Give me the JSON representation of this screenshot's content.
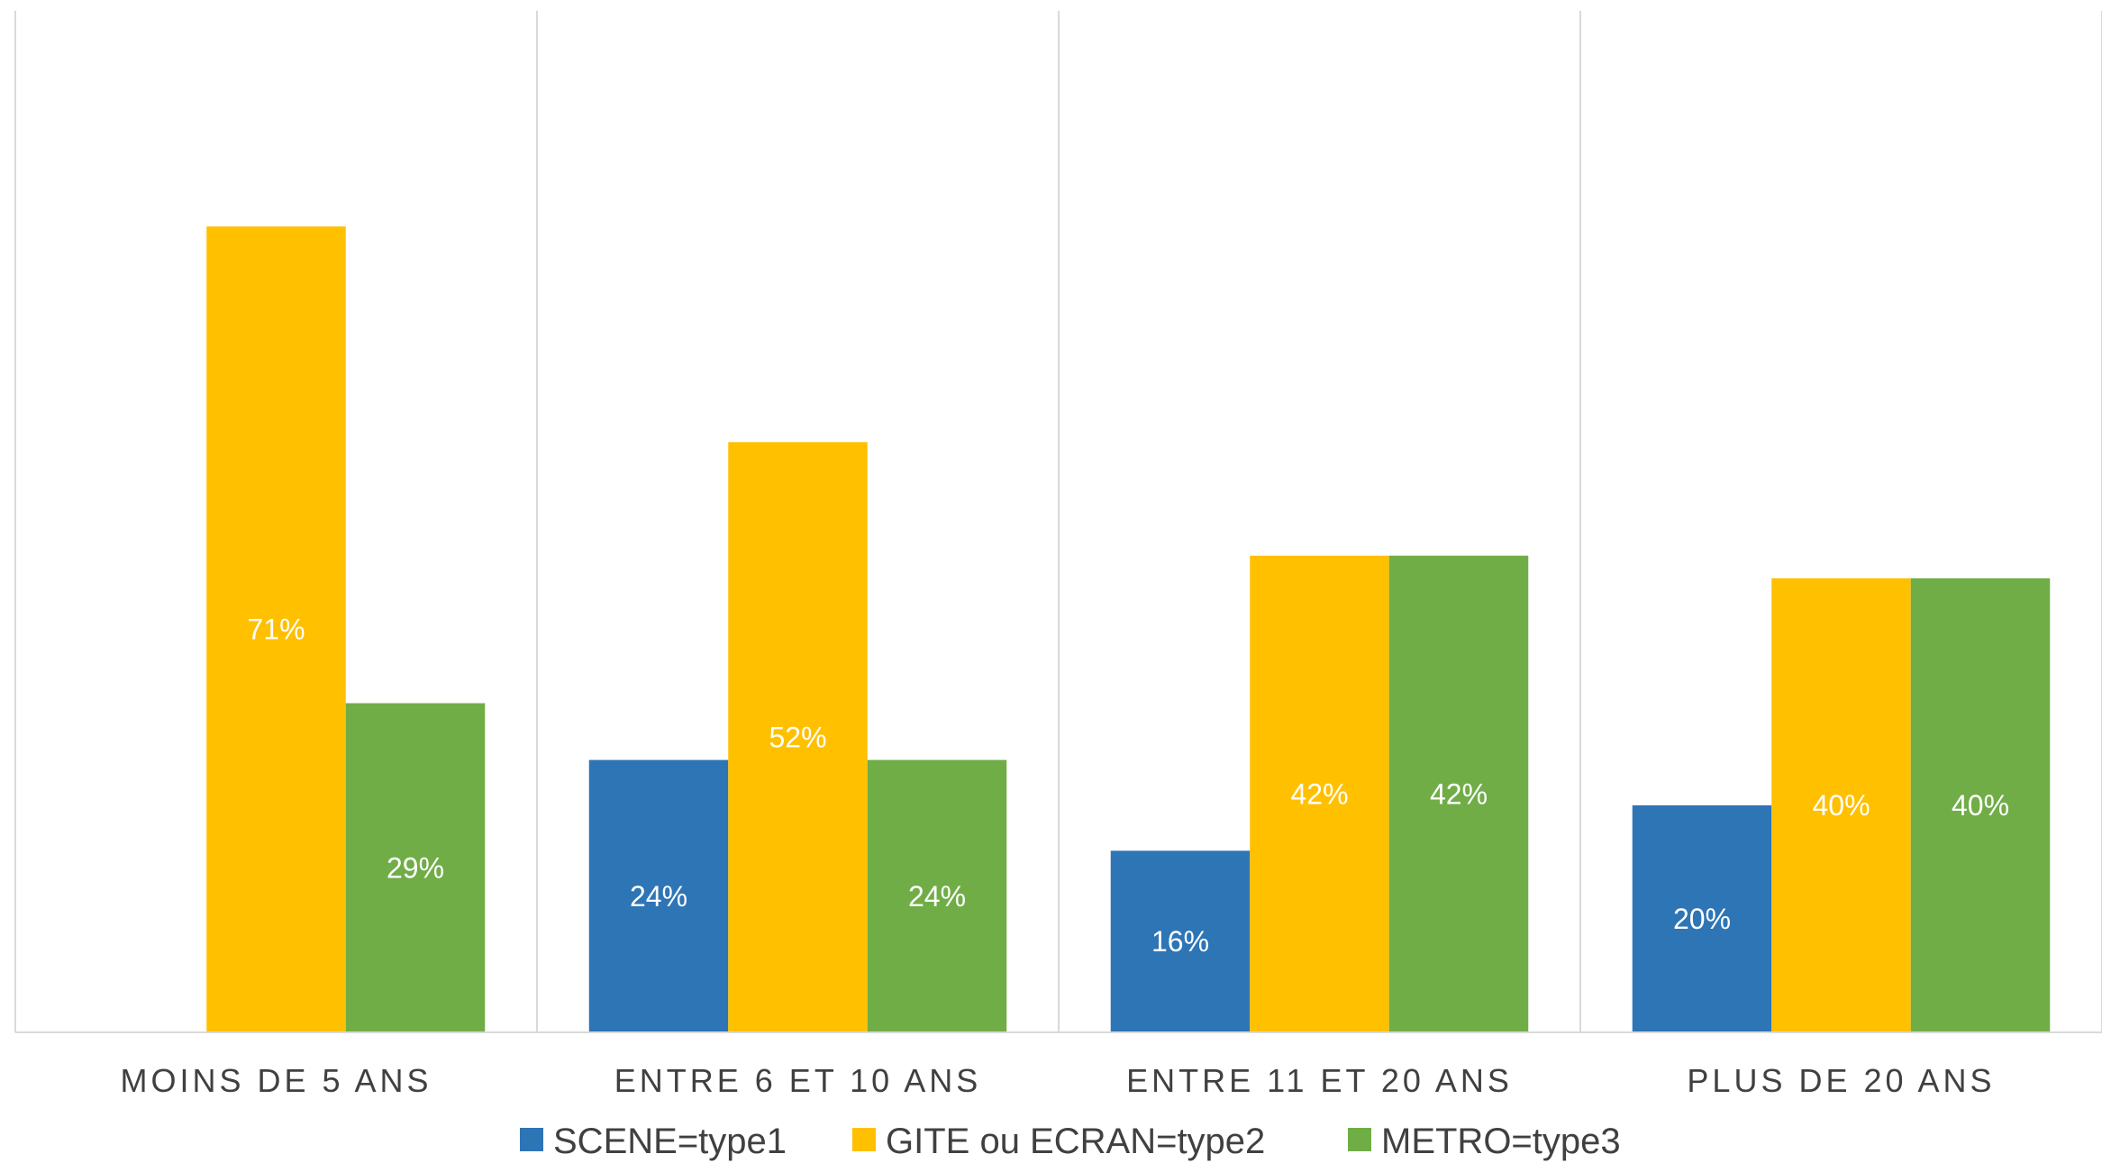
{
  "chart_data": {
    "type": "bar",
    "categories": [
      "MOINS DE 5 ANS",
      "ENTRE 6 ET 10 ANS",
      "ENTRE 11 ET 20 ANS",
      "PLUS DE 20 ANS"
    ],
    "series": [
      {
        "name": "SCENE=type1",
        "color": "#2E75B6",
        "values": [
          null,
          24,
          16,
          20
        ],
        "labels": [
          "",
          "24%",
          "16%",
          "20%"
        ]
      },
      {
        "name": "GITE ou ECRAN=type2",
        "color": "#FFC000",
        "values": [
          71,
          52,
          42,
          40
        ],
        "labels": [
          "71%",
          "52%",
          "42%",
          "40%"
        ]
      },
      {
        "name": "METRO=type3",
        "color": "#70AD47",
        "values": [
          29,
          24,
          42,
          40
        ],
        "labels": [
          "29%",
          "24%",
          "42%",
          "40%"
        ]
      }
    ],
    "ylim": [
      0,
      80
    ],
    "value_unit": "%",
    "grid": false,
    "category_separators": true,
    "legend_position": "bottom"
  }
}
